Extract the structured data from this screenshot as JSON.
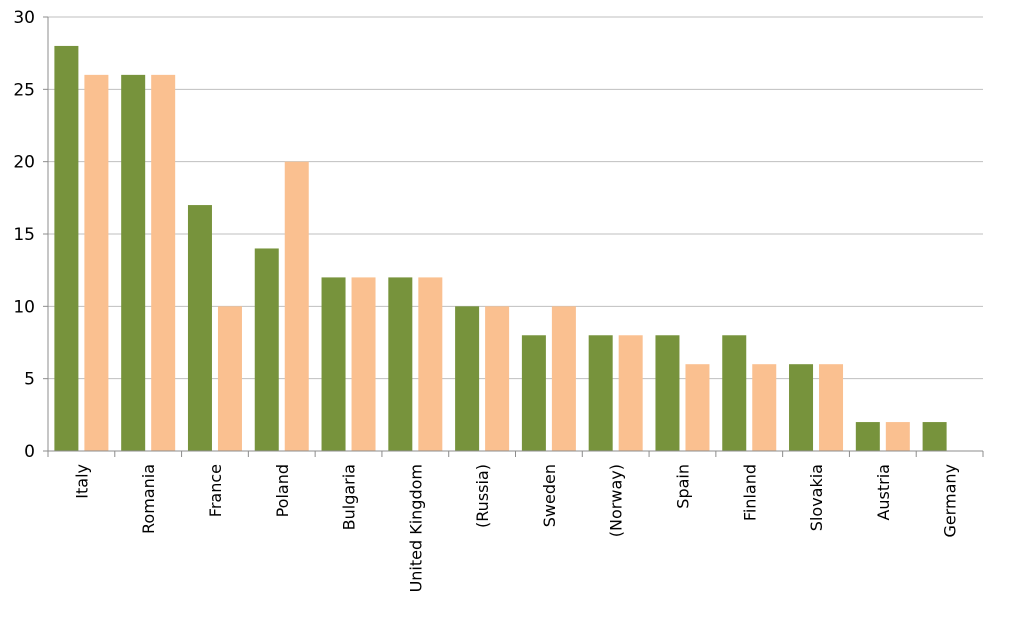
{
  "chart_data": {
    "type": "bar",
    "categories": [
      "Italy",
      "Romania",
      "France",
      "Poland",
      "Bulgaria",
      "United Kingdom",
      "(Russia)",
      "Sweden",
      "(Norway)",
      "Spain",
      "Finland",
      "Slovakia",
      "Austria",
      "Germany"
    ],
    "series": [
      {
        "color": "#77933c",
        "values": [
          28,
          26,
          17,
          14,
          12,
          12,
          10,
          8,
          8,
          8,
          8,
          6,
          2,
          2
        ]
      },
      {
        "color": "#fac090",
        "values": [
          26,
          26,
          10,
          20,
          12,
          12,
          10,
          10,
          8,
          6,
          6,
          6,
          2,
          0
        ]
      }
    ],
    "ylim": [
      0,
      30
    ],
    "yticks": [
      0,
      5,
      10,
      15,
      20,
      25,
      30
    ],
    "grid": true,
    "legend": "none"
  }
}
